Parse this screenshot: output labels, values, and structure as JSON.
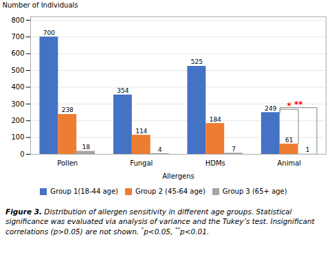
{
  "chart_data": {
    "type": "bar",
    "categories": [
      "Pollen",
      "Fungal",
      "HDMs",
      "Animal"
    ],
    "series": [
      {
        "name": "Group 1(18-44 age)",
        "color": "#4472C4",
        "values": [
          700,
          354,
          525,
          249
        ]
      },
      {
        "name": "Group 2 (45-64 age)",
        "color": "#ED7D31",
        "values": [
          238,
          114,
          184,
          61
        ]
      },
      {
        "name": "Group 3 (65+ age)",
        "color": "#A5A5A5",
        "values": [
          18,
          4,
          7,
          1
        ]
      }
    ],
    "xlabel": "Allergens",
    "ylabel": "Number of Individuals",
    "ylim": [
      0,
      820
    ],
    "yticks": [
      0,
      100,
      200,
      300,
      400,
      500,
      600,
      700,
      800
    ],
    "grid": true,
    "data_labels": true,
    "legend": "bottom",
    "annotations": [
      {
        "text": "*",
        "category": "Animal",
        "between": [
          "Group 1(18-44 age)",
          "Group 2 (45-64 age)"
        ],
        "y": 268,
        "color": "red"
      },
      {
        "text": "**",
        "category": "Animal",
        "between": [
          "Group 1(18-44 age)",
          "Group 3 (65+ age)"
        ],
        "y": 278,
        "color": "red"
      }
    ],
    "caption": [
      "Figure 3.",
      "Distribution of allergen sensitivity in different age groups.",
      "Statistical significance was evaluated via analysis of variance and the Tukey’s test. Insignificant correlations (p>0.05) are not shown.",
      "*p<0.05, **p<0.01."
    ]
  }
}
